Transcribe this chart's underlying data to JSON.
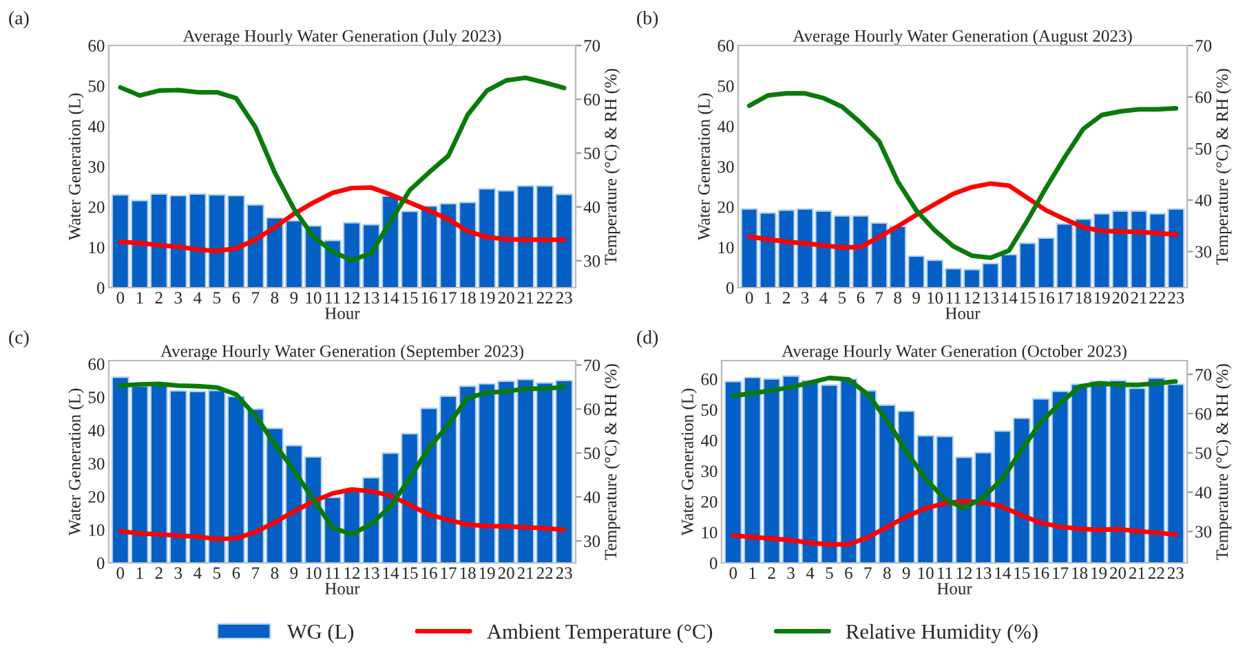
{
  "chart_data": [
    {
      "type": "bar",
      "title": "Average Hourly Water Generation (July 2023)",
      "annotations": [
        "(a)"
      ],
      "xlabel": "Hour",
      "ylabel": "Water Generation (L)",
      "y2label": "Temperature (°C) & RH (%)",
      "categories": [
        "0",
        "1",
        "2",
        "3",
        "4",
        "5",
        "6",
        "7",
        "8",
        "9",
        "10",
        "11",
        "12",
        "13",
        "14",
        "15",
        "16",
        "17",
        "18",
        "19",
        "20",
        "21",
        "22",
        "23"
      ],
      "ylim": [
        0,
        60
      ],
      "yticks": [
        0,
        10,
        20,
        30,
        40,
        50,
        60
      ],
      "y2lim": [
        25,
        70
      ],
      "y2ticks": [
        30,
        40,
        50,
        60,
        70
      ],
      "legend": "bottom",
      "series": [
        {
          "name": "WG (L)",
          "color": "#065fc4",
          "values": [
            23.0,
            21.6,
            23.2,
            22.8,
            23.2,
            23.0,
            22.8,
            20.5,
            17.3,
            16.6,
            15.3,
            11.7,
            16.1,
            15.6,
            22.7,
            18.9,
            20.2,
            20.8,
            21.1,
            24.5,
            24.0,
            25.2,
            25.2,
            23.1
          ]
        },
        {
          "name": "Ambient Temperature (°C)",
          "type": "line",
          "axis": "y2",
          "color": "#ff0000",
          "values": [
            33.5,
            33.3,
            32.9,
            32.6,
            32.1,
            31.8,
            32.3,
            33.9,
            36.2,
            38.7,
            40.8,
            42.6,
            43.5,
            43.6,
            42.3,
            40.8,
            39.3,
            37.7,
            35.5,
            34.4,
            34.0,
            33.9,
            33.9,
            33.9
          ]
        },
        {
          "name": "Relative Humidity (%)",
          "type": "line",
          "axis": "y2",
          "color": "#0a7a0a",
          "values": [
            62.2,
            60.7,
            61.6,
            61.7,
            61.3,
            61.3,
            60.2,
            54.8,
            46.4,
            39.6,
            34.5,
            31.7,
            30.1,
            31.4,
            37.3,
            43.1,
            46.4,
            49.5,
            57.1,
            61.6,
            63.5,
            64.0,
            63.1,
            62.1
          ]
        }
      ]
    },
    {
      "type": "bar",
      "title": "Average Hourly Water Generation (August 2023)",
      "annotations": [
        "(b)"
      ],
      "xlabel": "Hour",
      "ylabel": "Water Generation (L)",
      "y2label": "Temperature (°C) & RH (%)",
      "categories": [
        "0",
        "1",
        "2",
        "3",
        "4",
        "5",
        "6",
        "7",
        "8",
        "9",
        "10",
        "11",
        "12",
        "13",
        "14",
        "15",
        "16",
        "17",
        "18",
        "19",
        "20",
        "21",
        "22",
        "23"
      ],
      "ylim": [
        0,
        60
      ],
      "yticks": [
        0,
        10,
        20,
        30,
        40,
        50,
        60
      ],
      "y2lim": [
        23,
        70
      ],
      "y2ticks": [
        30,
        40,
        50,
        60,
        70
      ],
      "series": [
        {
          "color": "#065fc4",
          "values": [
            19.5,
            18.5,
            19.2,
            19.5,
            19.0,
            17.8,
            17.8,
            16.0,
            15.2,
            7.8,
            6.8,
            4.7,
            4.5,
            6.0,
            8.2,
            11.0,
            12.3,
            15.8,
            17.0,
            18.3,
            19.0,
            19.0,
            18.3,
            19.5
          ]
        },
        {
          "type": "line",
          "axis": "y2",
          "color": "#ff0000",
          "values": [
            32.9,
            32.4,
            31.9,
            31.6,
            31.2,
            30.8,
            30.9,
            32.8,
            34.9,
            37.1,
            39.2,
            41.2,
            42.5,
            43.2,
            42.8,
            40.4,
            38.0,
            36.3,
            34.7,
            34.0,
            33.9,
            33.8,
            33.6,
            33.3
          ]
        },
        {
          "type": "line",
          "axis": "y2",
          "color": "#0a7a0a",
          "values": [
            58.3,
            60.3,
            60.7,
            60.7,
            59.8,
            58.1,
            55.0,
            51.4,
            43.6,
            38.0,
            34.1,
            31.0,
            29.2,
            28.8,
            30.2,
            36.1,
            42.4,
            48.3,
            53.8,
            56.5,
            57.2,
            57.6,
            57.6,
            57.8
          ]
        }
      ]
    },
    {
      "type": "bar",
      "title": "Average Hourly Water Generation (September 2023)",
      "annotations": [
        "(c)"
      ],
      "xlabel": "Hour",
      "ylabel": "Water Generation (L)",
      "y2label": "Temperature (°C) & RH (%)",
      "categories": [
        "0",
        "1",
        "2",
        "3",
        "4",
        "5",
        "6",
        "7",
        "8",
        "9",
        "10",
        "11",
        "12",
        "13",
        "14",
        "15",
        "16",
        "17",
        "18",
        "19",
        "20",
        "21",
        "22",
        "23"
      ],
      "ylim": [
        0,
        61
      ],
      "yticks": [
        0,
        10,
        20,
        30,
        40,
        50,
        60
      ],
      "y2lim": [
        25,
        71
      ],
      "y2ticks": [
        30,
        40,
        50,
        60,
        70
      ],
      "series": [
        {
          "color": "#065fc4",
          "values": [
            56.0,
            53.3,
            53.8,
            51.9,
            51.7,
            52.0,
            50.2,
            46.4,
            40.6,
            35.4,
            32.0,
            19.8,
            21.9,
            25.7,
            33.1,
            39.0,
            46.6,
            50.3,
            53.3,
            54.0,
            54.8,
            55.3,
            54.3,
            55.0
          ]
        },
        {
          "type": "line",
          "axis": "y2",
          "color": "#ff0000",
          "values": [
            32.2,
            31.7,
            31.5,
            31.2,
            31.0,
            30.4,
            30.6,
            32.0,
            34.2,
            36.7,
            39.0,
            40.8,
            41.7,
            41.3,
            40.3,
            38.2,
            36.0,
            34.8,
            33.7,
            33.4,
            33.3,
            33.1,
            32.9,
            32.5
          ]
        },
        {
          "type": "line",
          "axis": "y2",
          "color": "#0a7a0a",
          "values": [
            65.3,
            65.6,
            65.7,
            65.3,
            65.2,
            64.9,
            63.3,
            58.5,
            52.0,
            46.0,
            39.4,
            33.0,
            31.5,
            33.9,
            37.8,
            44.3,
            51.2,
            56.4,
            62.5,
            63.7,
            64.0,
            64.6,
            64.6,
            65.0
          ]
        }
      ]
    },
    {
      "type": "bar",
      "title": "Average Hourly Water Generation (October 2023)",
      "annotations": [
        "(d)"
      ],
      "xlabel": "Hour",
      "ylabel": "Water Generation (L)",
      "y2label": "Temperature (°C) & RH (%)",
      "categories": [
        "0",
        "1",
        "2",
        "3",
        "4",
        "5",
        "6",
        "7",
        "8",
        "9",
        "10",
        "11",
        "12",
        "13",
        "14",
        "15",
        "16",
        "17",
        "18",
        "19",
        "20",
        "21",
        "22",
        "23"
      ],
      "ylim": [
        0,
        66
      ],
      "yticks": [
        0,
        10,
        20,
        30,
        40,
        50,
        60
      ],
      "y2lim": [
        22,
        73.5
      ],
      "y2ticks": [
        30,
        40,
        50,
        60,
        70
      ],
      "series": [
        {
          "color": "#065fc4",
          "values": [
            59.2,
            60.5,
            60.0,
            61.0,
            59.5,
            58.0,
            60.0,
            56.2,
            51.5,
            49.5,
            41.5,
            41.3,
            34.5,
            36.0,
            43.0,
            47.2,
            53.5,
            56.0,
            58.3,
            59.3,
            59.5,
            57.0,
            60.3,
            58.3
          ]
        },
        {
          "type": "line",
          "axis": "y2",
          "color": "#ff0000",
          "values": [
            29.0,
            28.6,
            28.2,
            27.8,
            27.1,
            26.7,
            26.7,
            28.5,
            31.1,
            33.8,
            35.9,
            37.2,
            37.7,
            37.4,
            36.3,
            34.1,
            32.2,
            31.2,
            30.7,
            30.4,
            30.6,
            30.1,
            29.7,
            29.2
          ]
        },
        {
          "type": "line",
          "axis": "y2",
          "color": "#0a7a0a",
          "values": [
            64.5,
            65.2,
            65.9,
            66.7,
            67.9,
            69.1,
            68.7,
            64.9,
            58.3,
            50.4,
            43.4,
            38.3,
            35.9,
            38.7,
            43.4,
            50.8,
            57.9,
            62.6,
            66.9,
            67.7,
            67.4,
            67.3,
            67.7,
            68.2
          ]
        }
      ]
    }
  ]
}
